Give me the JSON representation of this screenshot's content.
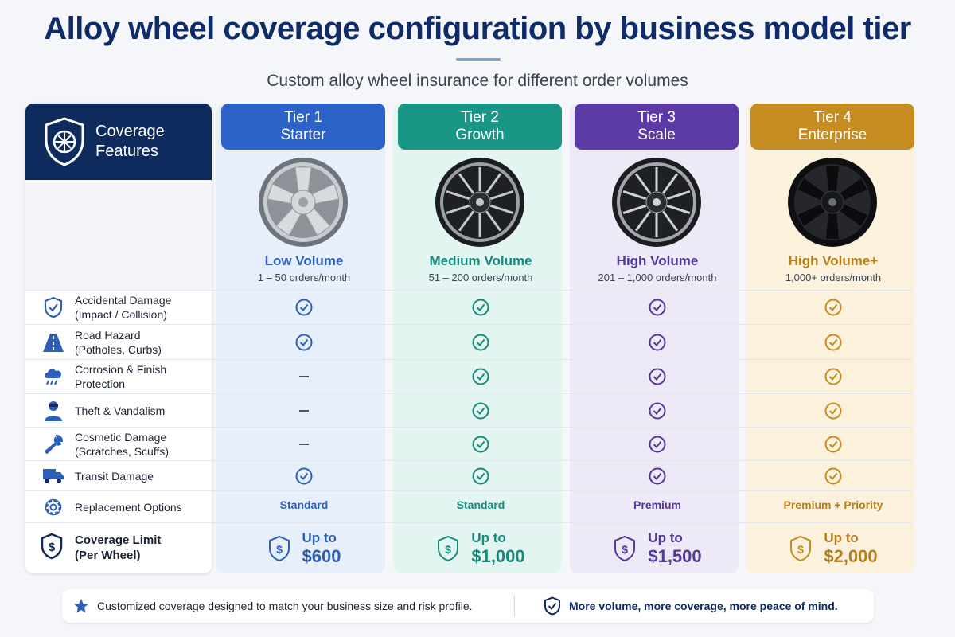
{
  "title": "Alloy wheel coverage configuration by business model tier",
  "subtitle": "Custom alloy wheel insurance for different order volumes",
  "features_header": {
    "line1": "Coverage",
    "line2": "Features",
    "icon": "shield-wheel-icon"
  },
  "colors": {
    "navy": "#0f2a5c",
    "tier1": "#2d63c8",
    "tier2": "#1a9687",
    "tier3": "#5b3aa6",
    "tier4": "#c58c22"
  },
  "tiers": [
    {
      "name": "Tier 1",
      "label": "Starter",
      "volume": "Low Volume",
      "orders": "1 – 50 orders/month",
      "wheel": "silver-alloy-wheel",
      "replacement": "Standard",
      "limit_prefix": "Up to",
      "limit_amount": "$600"
    },
    {
      "name": "Tier 2",
      "label": "Growth",
      "volume": "Medium Volume",
      "orders": "51 – 200 orders/month",
      "wheel": "black-machined-wheel",
      "replacement": "Standard",
      "limit_prefix": "Up to",
      "limit_amount": "$1,000"
    },
    {
      "name": "Tier 3",
      "label": "Scale",
      "volume": "High Volume",
      "orders": "201 – 1,000 orders/month",
      "wheel": "black-machined-wheel",
      "replacement": "Premium",
      "limit_prefix": "Up to",
      "limit_amount": "$1,500"
    },
    {
      "name": "Tier 4",
      "label": "Enterprise",
      "volume": "High Volume+",
      "orders": "1,000+ orders/month",
      "wheel": "gloss-black-wheel",
      "replacement": "Premium + Priority",
      "limit_prefix": "Up to",
      "limit_amount": "$2,000"
    }
  ],
  "features": [
    {
      "line1": "Accidental Damage",
      "line2": "(Impact / Collision)",
      "icon": "shield-check-icon",
      "coverage": [
        true,
        true,
        true,
        true
      ]
    },
    {
      "line1": "Road Hazard",
      "line2": "(Potholes, Curbs)",
      "icon": "road-icon",
      "coverage": [
        true,
        true,
        true,
        true
      ]
    },
    {
      "line1": "Corrosion & Finish",
      "line2": "Protection",
      "icon": "rain-cloud-icon",
      "coverage": [
        false,
        true,
        true,
        true
      ]
    },
    {
      "line1": "Theft & Vandalism",
      "line2": "",
      "icon": "thief-icon",
      "coverage": [
        false,
        true,
        true,
        true
      ]
    },
    {
      "line1": "Cosmetic Damage",
      "line2": "(Scratches, Scuffs)",
      "icon": "wrench-icon",
      "coverage": [
        false,
        true,
        true,
        true
      ]
    },
    {
      "line1": "Transit Damage",
      "line2": "",
      "icon": "truck-icon",
      "coverage": [
        true,
        true,
        true,
        true
      ]
    }
  ],
  "replacement_row": {
    "label": "Replacement Options",
    "icon": "gear-icon"
  },
  "limit_row": {
    "line1": "Coverage Limit",
    "line2": "(Per Wheel)",
    "icon": "dollar-shield-icon"
  },
  "footer": {
    "left": "Customized coverage designed to match your business size and risk profile.",
    "right": "More volume, more coverage, more peace of mind."
  }
}
